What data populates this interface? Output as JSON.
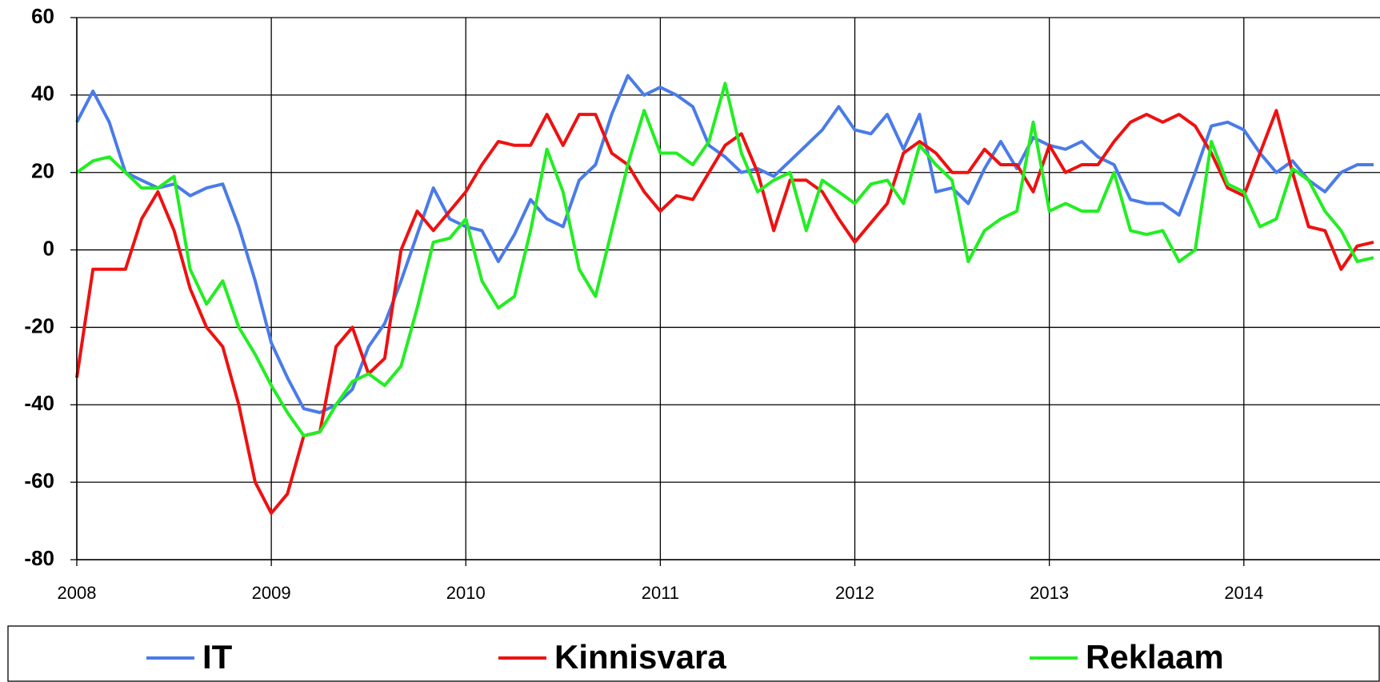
{
  "chart_data": {
    "type": "line",
    "x": [
      2008,
      2008.083,
      2008.167,
      2008.25,
      2008.333,
      2008.417,
      2008.5,
      2008.583,
      2008.667,
      2008.75,
      2008.833,
      2008.917,
      2009,
      2009.083,
      2009.167,
      2009.25,
      2009.333,
      2009.417,
      2009.5,
      2009.583,
      2009.667,
      2009.75,
      2009.833,
      2009.917,
      2010,
      2010.083,
      2010.167,
      2010.25,
      2010.333,
      2010.417,
      2010.5,
      2010.583,
      2010.667,
      2010.75,
      2010.833,
      2010.917,
      2011,
      2011.083,
      2011.167,
      2011.25,
      2011.333,
      2011.417,
      2011.5,
      2011.583,
      2011.667,
      2011.75,
      2011.833,
      2011.917,
      2012,
      2012.083,
      2012.167,
      2012.25,
      2012.333,
      2012.417,
      2012.5,
      2012.583,
      2012.667,
      2012.75,
      2012.833,
      2012.917,
      2013,
      2013.083,
      2013.167,
      2013.25,
      2013.333,
      2013.417,
      2013.5,
      2013.583,
      2013.667,
      2013.75,
      2013.833,
      2013.917,
      2014,
      2014.083,
      2014.167,
      2014.25,
      2014.333,
      2014.417,
      2014.5,
      2014.583,
      2014.667
    ],
    "series": [
      {
        "name": "IT",
        "color": "#4a7be8",
        "values": [
          33,
          41,
          33,
          20,
          18,
          16,
          17,
          14,
          16,
          17,
          6,
          -8,
          -24,
          -33,
          -41,
          -42,
          -40,
          -36,
          -25,
          -19,
          -8,
          4,
          16,
          8,
          6,
          5,
          -3,
          4,
          13,
          8,
          6,
          18,
          22,
          35,
          45,
          40,
          42,
          40,
          37,
          27,
          24,
          20,
          21,
          19,
          23,
          27,
          31,
          37,
          31,
          30,
          35,
          26,
          35,
          15,
          16,
          12,
          21,
          28,
          21,
          29,
          27,
          26,
          28,
          24,
          22,
          13,
          12,
          12,
          9,
          20,
          32,
          33,
          31,
          25,
          20,
          23,
          18,
          15,
          20,
          22,
          22
        ]
      },
      {
        "name": "Kinnisvara",
        "color": "#ee1111",
        "values": [
          -33,
          -5,
          -5,
          -5,
          8,
          15,
          5,
          -10,
          -20,
          -25,
          -40,
          -60,
          -68,
          -63,
          -48,
          -47,
          -25,
          -20,
          -32,
          -28,
          0,
          10,
          5,
          10,
          15,
          22,
          28,
          27,
          27,
          35,
          27,
          35,
          35,
          25,
          22,
          15,
          10,
          14,
          13,
          20,
          27,
          30,
          20,
          5,
          18,
          18,
          15,
          8,
          2,
          7,
          12,
          25,
          28,
          25,
          20,
          20,
          26,
          22,
          22,
          15,
          27,
          20,
          22,
          22,
          28,
          33,
          35,
          33,
          35,
          32,
          25,
          16,
          14,
          25,
          36,
          20,
          6,
          5,
          -5,
          1,
          2
        ]
      },
      {
        "name": "Reklaam",
        "color": "#22ee22",
        "values": [
          20,
          23,
          24,
          20,
          16,
          16,
          19,
          -5,
          -14,
          -8,
          -20,
          -27,
          -35,
          -42,
          -48,
          -47,
          -40,
          -34,
          -32,
          -35,
          -30,
          -15,
          2,
          3,
          8,
          -8,
          -15,
          -12,
          5,
          26,
          15,
          -5,
          -12,
          5,
          22,
          36,
          25,
          25,
          22,
          28,
          43,
          25,
          15,
          18,
          20,
          5,
          18,
          15,
          12,
          17,
          18,
          12,
          27,
          22,
          18,
          -3,
          5,
          8,
          10,
          33,
          10,
          12,
          10,
          10,
          20,
          5,
          4,
          5,
          -3,
          0,
          28,
          17,
          15,
          6,
          8,
          21,
          18,
          10,
          5,
          -3,
          -2
        ]
      }
    ],
    "xlim": [
      2008,
      2014.7
    ],
    "xticks": [
      2008,
      2009,
      2010,
      2011,
      2012,
      2013,
      2014
    ],
    "ylim": [
      -80,
      60
    ],
    "yticks": [
      -80,
      -60,
      -40,
      -20,
      0,
      20,
      40,
      60
    ],
    "grid": true,
    "legend": "bottom"
  }
}
